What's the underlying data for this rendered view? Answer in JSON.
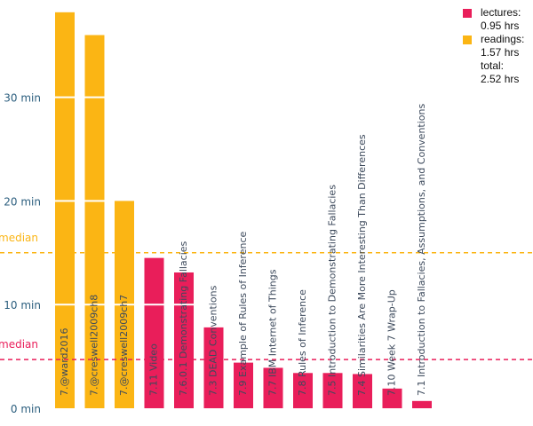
{
  "colors": {
    "lectures": "#e91e5a",
    "readings": "#fbb514",
    "tick_text": "#2b5e7e",
    "label_text": "#3d4a5c"
  },
  "chart_data": {
    "type": "bar",
    "title": "",
    "xlabel": "",
    "ylabel": "",
    "ylim": [
      0,
      40
    ],
    "y_ticks": [
      {
        "value": 0,
        "label": "0 min"
      },
      {
        "value": 10,
        "label": "10 min"
      },
      {
        "value": 20,
        "label": "20 min"
      },
      {
        "value": 30,
        "label": "30 min"
      }
    ],
    "series": [
      {
        "name": "lectures",
        "color": "#e91e5a"
      },
      {
        "name": "readings",
        "color": "#fbb514"
      }
    ],
    "bars": [
      {
        "label": "7.@ward2016",
        "series": "readings",
        "value": 38.2
      },
      {
        "label": "7.@creswell2009ch8",
        "series": "readings",
        "value": 36.0
      },
      {
        "label": "7.@creswell2009ch7",
        "series": "readings",
        "value": 20.0
      },
      {
        "label": "7.11 Video",
        "series": "lectures",
        "value": 14.5
      },
      {
        "label": "7.6.0.1 Demonstrating Fallacies",
        "series": "lectures",
        "value": 13.1
      },
      {
        "label": "7.3 DEAD Conventions",
        "series": "lectures",
        "value": 7.8
      },
      {
        "label": "7.9 Example of Rules of Inference",
        "series": "lectures",
        "value": 4.4
      },
      {
        "label": "7.7 IBM Internet of Things",
        "series": "lectures",
        "value": 3.9
      },
      {
        "label": "7.8 Rules of Inference",
        "series": "lectures",
        "value": 3.4
      },
      {
        "label": "7.5 Introduction to Demonstrating Fallacies",
        "series": "lectures",
        "value": 3.4
      },
      {
        "label": "7.4 Similarities Are More Interesting Than Differences",
        "series": "lectures",
        "value": 3.3
      },
      {
        "label": "7.10 Week 7 Wrap-Up",
        "series": "lectures",
        "value": 1.9
      },
      {
        "label": "7.1 Introduction to Fallacies, Assumptions, and Conventions",
        "series": "lectures",
        "value": 0.7
      }
    ],
    "medians": [
      {
        "series": "readings",
        "label": "median",
        "value": 15.0
      },
      {
        "series": "lectures",
        "label": "median",
        "value": 4.7
      }
    ],
    "legend": {
      "position": "top-right",
      "items": [
        {
          "series": "lectures",
          "label": "lectures:",
          "value": "0.95 hrs"
        },
        {
          "series": "readings",
          "label": "readings:",
          "value": "1.57 hrs"
        }
      ],
      "total_label": "total:",
      "total_value": "2.52 hrs"
    }
  }
}
